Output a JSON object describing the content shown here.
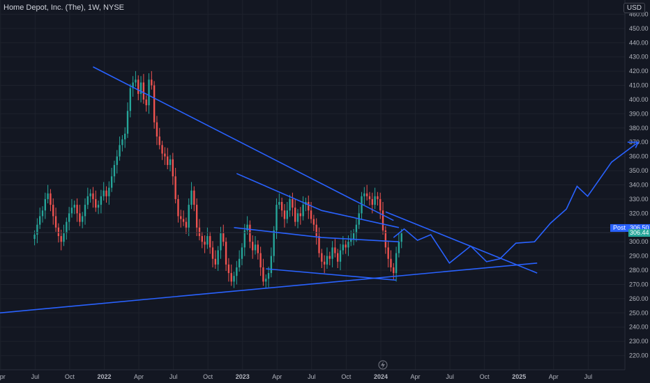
{
  "header": {
    "title": "Home Depot, Inc. (The), 1W, NYSE",
    "currency": "USD"
  },
  "colors": {
    "background": "#131722",
    "grid": "#1e222d",
    "up": "#26a69a",
    "down": "#ef5350",
    "drawing": "#2962ff",
    "price_line": "#2a2e39",
    "badge": "#2962ff",
    "text": "#b2b5be"
  },
  "badges": {
    "post_label": "Post",
    "post_value": "306.50",
    "last_value": "306.44"
  },
  "footer": {
    "flash_icon": "lightning-icon"
  },
  "chart_data": {
    "type": "candlestick",
    "title": "Home Depot, Inc. (The), 1W, NYSE",
    "xlabel": "",
    "ylabel": "",
    "ylim": [
      210,
      470
    ],
    "y_ticks": [
      220,
      230,
      240,
      250,
      260,
      270,
      280,
      290,
      300,
      310,
      320,
      330,
      340,
      350,
      360,
      370,
      380,
      390,
      400,
      410,
      420,
      430,
      440,
      450,
      460
    ],
    "x_ticks": [
      "Apr",
      "Jul",
      "Oct",
      "2022",
      "Apr",
      "Jul",
      "Oct",
      "2023",
      "Apr",
      "Jul",
      "Oct",
      "2024",
      "Apr",
      "Jul",
      "Oct",
      "2025",
      "Apr",
      "Jul"
    ],
    "x_tick_bold": [
      false,
      false,
      false,
      true,
      false,
      false,
      false,
      true,
      false,
      false,
      false,
      true,
      false,
      false,
      false,
      true,
      false,
      false
    ],
    "x_range_week": [
      -13,
      222
    ],
    "grid": true,
    "last_price": 306.44,
    "post_price": 306.5,
    "weekly_closes": [
      305,
      312,
      318,
      322,
      330,
      334,
      326,
      318,
      310,
      304,
      300,
      306,
      314,
      320,
      324,
      326,
      320,
      314,
      318,
      326,
      332,
      334,
      330,
      324,
      326,
      332,
      336,
      332,
      338,
      346,
      354,
      360,
      368,
      372,
      376,
      392,
      408,
      412,
      414,
      404,
      412,
      400,
      396,
      414,
      410,
      384,
      374,
      368,
      362,
      360,
      354,
      358,
      346,
      330,
      318,
      316,
      314,
      310,
      326,
      336,
      326,
      310,
      304,
      300,
      298,
      304,
      296,
      288,
      284,
      294,
      306,
      300,
      284,
      278,
      272,
      276,
      282,
      288,
      296,
      308,
      312,
      300,
      294,
      298,
      292,
      282,
      272,
      274,
      278,
      290,
      308,
      326,
      328,
      322,
      316,
      322,
      330,
      324,
      314,
      320,
      318,
      326,
      328,
      322,
      316,
      312,
      304,
      292,
      286,
      284,
      290,
      288,
      296,
      292,
      286,
      294,
      298,
      296,
      300,
      302,
      306,
      312,
      320,
      332,
      334,
      332,
      330,
      326,
      332,
      330,
      322,
      308,
      296,
      288,
      282,
      278,
      292,
      300,
      306
    ],
    "drawings": [
      {
        "name": "upper-downtrend",
        "points": [
          [
            22,
            423
          ],
          [
            135,
            315
          ]
        ]
      },
      {
        "name": "long-support",
        "points": [
          [
            -13,
            250
          ],
          [
            189,
            285
          ]
        ]
      },
      {
        "name": "descending-resistance",
        "points": [
          [
            76,
            348
          ],
          [
            108,
            322
          ],
          [
            137,
            310
          ]
        ]
      },
      {
        "name": "inner-channel-top",
        "points": [
          [
            75,
            310
          ],
          [
            108,
            303
          ],
          [
            137,
            300
          ]
        ]
      },
      {
        "name": "channel-bottom",
        "points": [
          [
            87,
            281
          ],
          [
            136,
            273
          ]
        ]
      },
      {
        "name": "projection-path",
        "points": [
          [
            135,
            303
          ],
          [
            139,
            309
          ],
          [
            144,
            301
          ],
          [
            149,
            305
          ],
          [
            156,
            285
          ],
          [
            164,
            297
          ],
          [
            170,
            286
          ],
          [
            175,
            288
          ],
          [
            181,
            299
          ],
          [
            188,
            300
          ],
          [
            194,
            313
          ],
          [
            200,
            323
          ],
          [
            204,
            339
          ],
          [
            208,
            332
          ],
          [
            217,
            356
          ],
          [
            227,
            370
          ]
        ]
      },
      {
        "name": "arrow-head",
        "points": [
          [
            223,
            370
          ],
          [
            227,
            370
          ],
          [
            226,
            366
          ]
        ]
      },
      {
        "name": "triangle-extension",
        "points": [
          [
            132,
            321
          ],
          [
            189,
            278
          ]
        ]
      }
    ]
  }
}
